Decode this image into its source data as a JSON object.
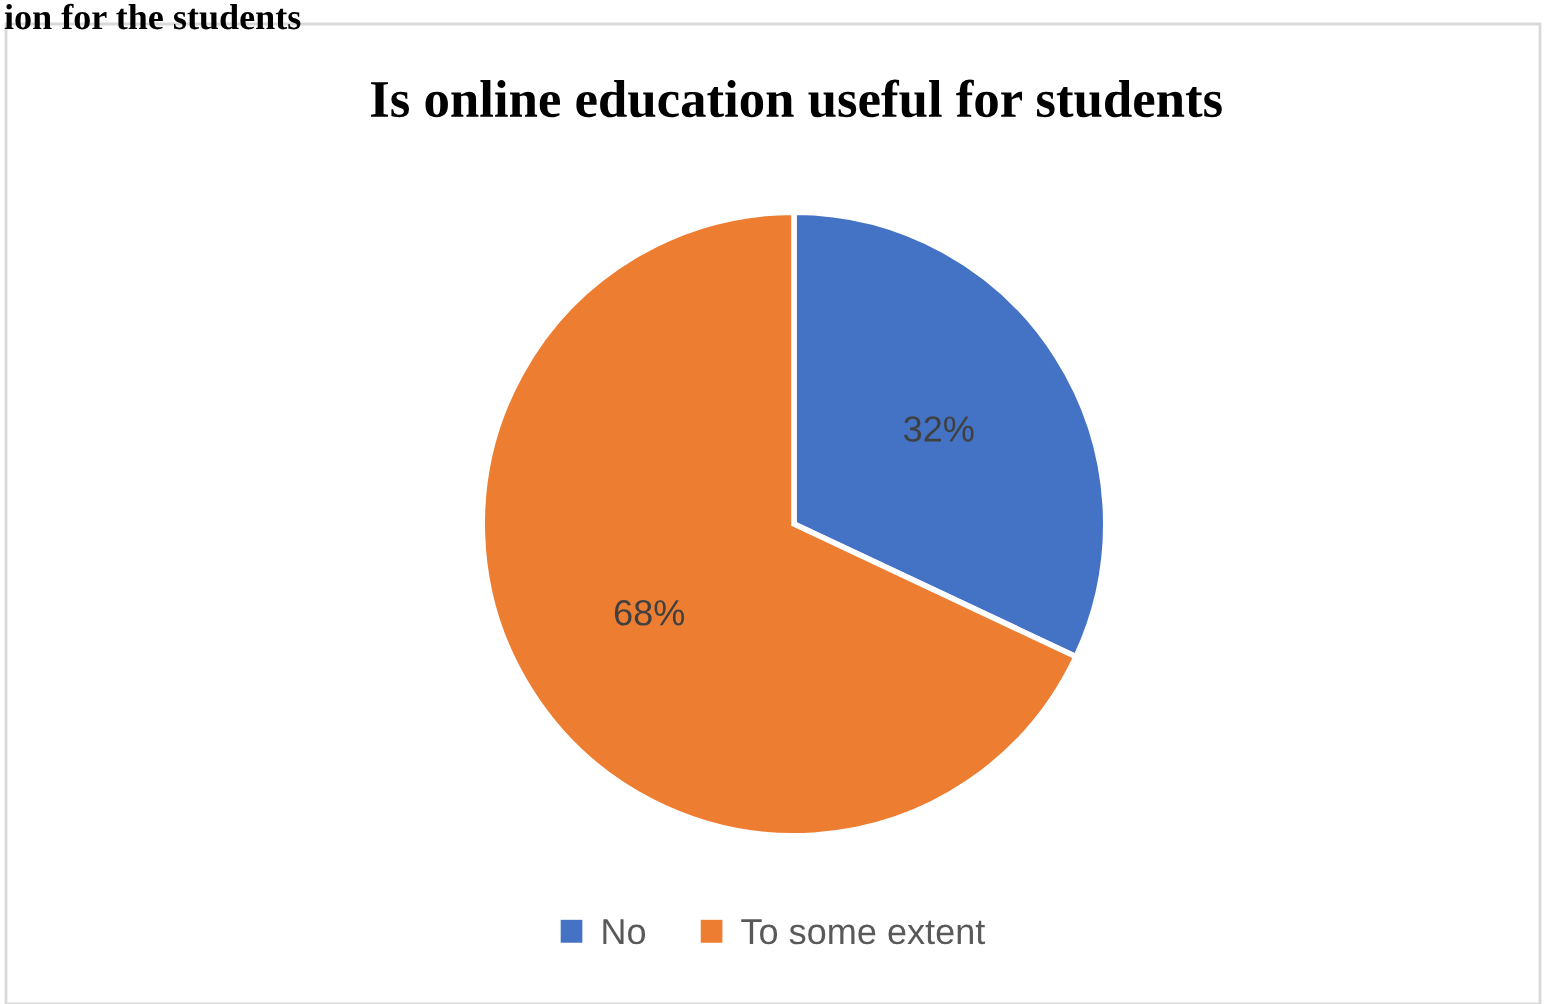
{
  "chart_data": {
    "type": "pie",
    "title": "Is online education useful for students",
    "categories": [
      "No",
      "To some extent"
    ],
    "values": [
      32,
      68
    ],
    "colors": [
      "#4472c4",
      "#ed7d31"
    ],
    "value_labels": [
      "32%",
      "68%"
    ],
    "legend": "bottom",
    "annotations": [
      "ion for the students"
    ]
  }
}
